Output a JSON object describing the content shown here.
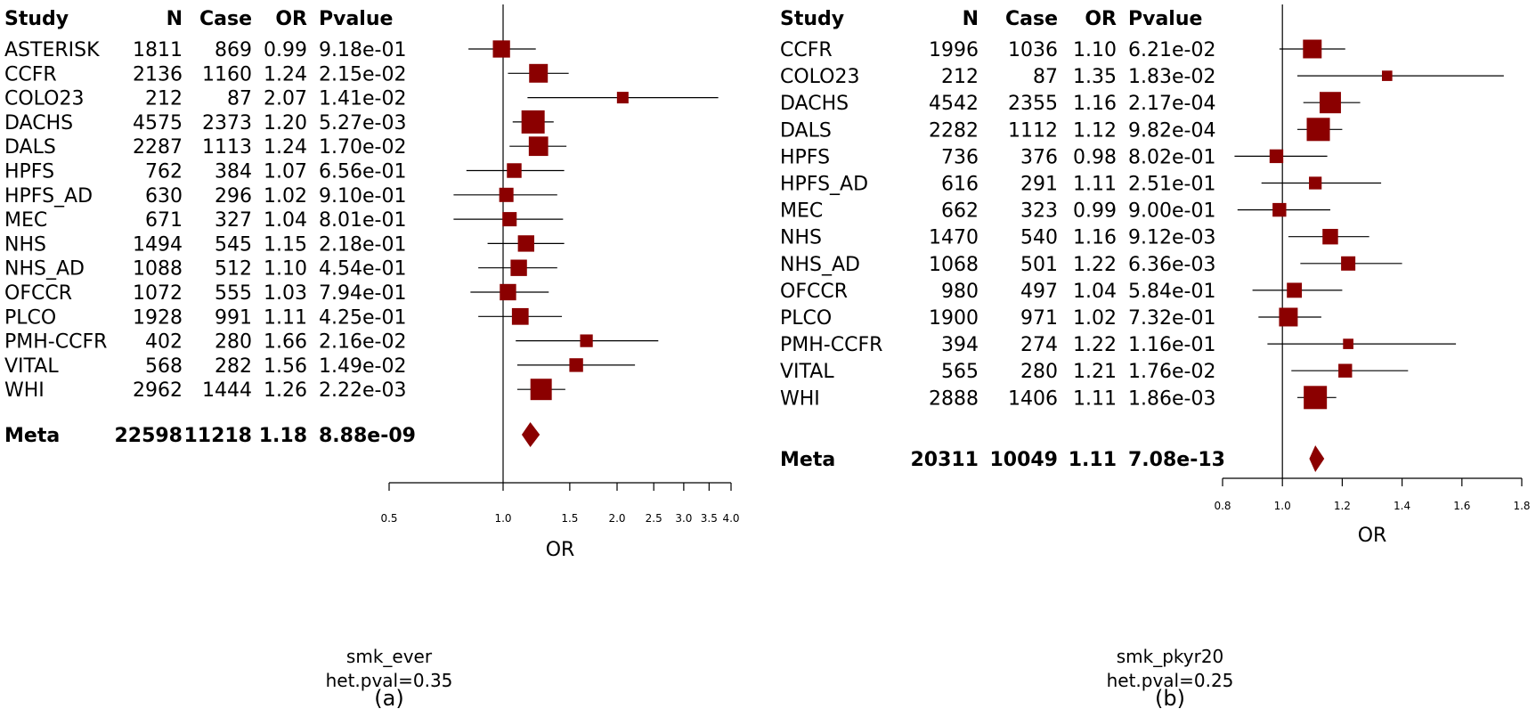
{
  "chart_data": [
    {
      "type": "forest",
      "panel_label": "(a)",
      "caption_lines": [
        "smk_ever",
        "het.pval=0.35"
      ],
      "columns": [
        "Study",
        "N",
        "Case",
        "OR",
        "Pvalue"
      ],
      "xlabel": "OR",
      "x_scale": "log",
      "xlim": [
        0.5,
        4.0
      ],
      "xticks": [
        0.5,
        1.0,
        1.5,
        2.0,
        2.5,
        3.0,
        3.5,
        4.0
      ],
      "xtick_labels": [
        "0.5",
        "1.0",
        "1.5",
        "2.0",
        "2.5",
        "3.0",
        "3.5",
        "4.0"
      ],
      "reference_line": 1.0,
      "marker_color": "#8b0000",
      "rows": [
        {
          "study": "ASTERISK",
          "n": "1811",
          "case": "869",
          "or": "0.99",
          "p": "9.18e-01",
          "or_value": 0.99,
          "lo": 0.81,
          "hi": 1.22,
          "weight": 0.55
        },
        {
          "study": "CCFR",
          "n": "2136",
          "case": "1160",
          "or": "1.24",
          "p": "2.15e-02",
          "or_value": 1.24,
          "lo": 1.03,
          "hi": 1.49,
          "weight": 0.65
        },
        {
          "study": "COLO23",
          "n": "212",
          "case": "87",
          "or": "2.07",
          "p": "1.41e-02",
          "or_value": 2.07,
          "lo": 1.16,
          "hi": 3.7,
          "weight": 0.25
        },
        {
          "study": "DACHS",
          "n": "4575",
          "case": "2373",
          "or": "1.20",
          "p": "5.27e-03",
          "or_value": 1.2,
          "lo": 1.06,
          "hi": 1.36,
          "weight": 1.0
        },
        {
          "study": "DALS",
          "n": "2287",
          "case": "1113",
          "or": "1.24",
          "p": "1.70e-02",
          "or_value": 1.24,
          "lo": 1.04,
          "hi": 1.47,
          "weight": 0.7
        },
        {
          "study": "HPFS",
          "n": "762",
          "case": "384",
          "or": "1.07",
          "p": "6.56e-01",
          "or_value": 1.07,
          "lo": 0.8,
          "hi": 1.45,
          "weight": 0.4
        },
        {
          "study": "HPFS_AD",
          "n": "630",
          "case": "296",
          "or": "1.02",
          "p": "9.10e-01",
          "or_value": 1.02,
          "lo": 0.74,
          "hi": 1.39,
          "weight": 0.38
        },
        {
          "study": "MEC",
          "n": "671",
          "case": "327",
          "or": "1.04",
          "p": "8.01e-01",
          "or_value": 1.04,
          "lo": 0.74,
          "hi": 1.44,
          "weight": 0.38
        },
        {
          "study": "NHS",
          "n": "1494",
          "case": "545",
          "or": "1.15",
          "p": "2.18e-01",
          "or_value": 1.15,
          "lo": 0.91,
          "hi": 1.45,
          "weight": 0.5
        },
        {
          "study": "NHS_AD",
          "n": "1088",
          "case": "512",
          "or": "1.10",
          "p": "4.54e-01",
          "or_value": 1.1,
          "lo": 0.86,
          "hi": 1.39,
          "weight": 0.5
        },
        {
          "study": "OFCCR",
          "n": "1072",
          "case": "555",
          "or": "1.03",
          "p": "7.94e-01",
          "or_value": 1.03,
          "lo": 0.82,
          "hi": 1.32,
          "weight": 0.5
        },
        {
          "study": "PLCO",
          "n": "1928",
          "case": "991",
          "or": "1.11",
          "p": "4.25e-01",
          "or_value": 1.11,
          "lo": 0.86,
          "hi": 1.43,
          "weight": 0.52
        },
        {
          "study": "PMH-CCFR",
          "n": "402",
          "case": "280",
          "or": "1.66",
          "p": "2.16e-02",
          "or_value": 1.66,
          "lo": 1.08,
          "hi": 2.57,
          "weight": 0.3
        },
        {
          "study": "VITAL",
          "n": "568",
          "case": "282",
          "or": "1.56",
          "p": "1.49e-02",
          "or_value": 1.56,
          "lo": 1.09,
          "hi": 2.23,
          "weight": 0.35
        },
        {
          "study": "WHI",
          "n": "2962",
          "case": "1444",
          "or": "1.26",
          "p": "2.22e-03",
          "or_value": 1.26,
          "lo": 1.09,
          "hi": 1.46,
          "weight": 0.85
        }
      ],
      "meta": {
        "study": "Meta",
        "n": "22598",
        "case": "11218",
        "or": "1.18",
        "p": "8.88e-09",
        "or_value": 1.18,
        "lo": 1.12,
        "hi": 1.25
      }
    },
    {
      "type": "forest",
      "panel_label": "(b)",
      "caption_lines": [
        "smk_pkyr20",
        "het.pval=0.25"
      ],
      "columns": [
        "Study",
        "N",
        "Case",
        "OR",
        "Pvalue"
      ],
      "xlabel": "OR",
      "x_scale": "linear",
      "xlim": [
        0.8,
        1.8
      ],
      "xticks": [
        0.8,
        1.0,
        1.2,
        1.4,
        1.6,
        1.8
      ],
      "xtick_labels": [
        "0.8",
        "1.0",
        "1.2",
        "1.4",
        "1.6",
        "1.8"
      ],
      "reference_line": 1.0,
      "marker_color": "#8b0000",
      "rows": [
        {
          "study": "CCFR",
          "n": "1996",
          "case": "1036",
          "or": "1.10",
          "p": "6.21e-02",
          "or_value": 1.1,
          "lo": 0.99,
          "hi": 1.21,
          "weight": 0.65
        },
        {
          "study": "COLO23",
          "n": "212",
          "case": "87",
          "or": "1.35",
          "p": "1.83e-02",
          "or_value": 1.35,
          "lo": 1.05,
          "hi": 1.74,
          "weight": 0.2
        },
        {
          "study": "DACHS",
          "n": "4542",
          "case": "2355",
          "or": "1.16",
          "p": "2.17e-04",
          "or_value": 1.16,
          "lo": 1.07,
          "hi": 1.26,
          "weight": 0.85
        },
        {
          "study": "DALS",
          "n": "2282",
          "case": "1112",
          "or": "1.12",
          "p": "9.82e-04",
          "or_value": 1.12,
          "lo": 1.05,
          "hi": 1.2,
          "weight": 1.0
        },
        {
          "study": "HPFS",
          "n": "736",
          "case": "376",
          "or": "0.98",
          "p": "8.02e-01",
          "or_value": 0.98,
          "lo": 0.84,
          "hi": 1.15,
          "weight": 0.35
        },
        {
          "study": "HPFS_AD",
          "n": "616",
          "case": "291",
          "or": "1.11",
          "p": "2.51e-01",
          "or_value": 1.11,
          "lo": 0.93,
          "hi": 1.33,
          "weight": 0.3
        },
        {
          "study": "MEC",
          "n": "662",
          "case": "323",
          "or": "0.99",
          "p": "9.00e-01",
          "or_value": 0.99,
          "lo": 0.85,
          "hi": 1.16,
          "weight": 0.35
        },
        {
          "study": "NHS",
          "n": "1470",
          "case": "540",
          "or": "1.16",
          "p": "9.12e-03",
          "or_value": 1.16,
          "lo": 1.02,
          "hi": 1.29,
          "weight": 0.45
        },
        {
          "study": "NHS_AD",
          "n": "1068",
          "case": "501",
          "or": "1.22",
          "p": "6.36e-03",
          "or_value": 1.22,
          "lo": 1.06,
          "hi": 1.4,
          "weight": 0.38
        },
        {
          "study": "OFCCR",
          "n": "980",
          "case": "497",
          "or": "1.04",
          "p": "5.84e-01",
          "or_value": 1.04,
          "lo": 0.9,
          "hi": 1.2,
          "weight": 0.42
        },
        {
          "study": "PLCO",
          "n": "1900",
          "case": "971",
          "or": "1.02",
          "p": "7.32e-01",
          "or_value": 1.02,
          "lo": 0.92,
          "hi": 1.13,
          "weight": 0.65
        },
        {
          "study": "PMH-CCFR",
          "n": "394",
          "case": "274",
          "or": "1.22",
          "p": "1.16e-01",
          "or_value": 1.22,
          "lo": 0.95,
          "hi": 1.58,
          "weight": 0.2
        },
        {
          "study": "VITAL",
          "n": "565",
          "case": "280",
          "or": "1.21",
          "p": "1.76e-02",
          "or_value": 1.21,
          "lo": 1.03,
          "hi": 1.42,
          "weight": 0.35
        },
        {
          "study": "WHI",
          "n": "2888",
          "case": "1406",
          "or": "1.11",
          "p": "1.86e-03",
          "or_value": 1.11,
          "lo": 1.05,
          "hi": 1.18,
          "weight": 1.0
        }
      ],
      "meta": {
        "study": "Meta",
        "n": "20311",
        "case": "10049",
        "or": "1.11",
        "p": "7.08e-13",
        "or_value": 1.11,
        "lo": 1.09,
        "hi": 1.14
      }
    }
  ]
}
